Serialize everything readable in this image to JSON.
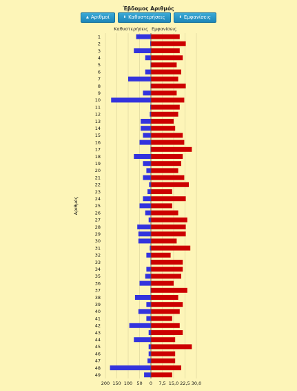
{
  "header": {
    "title": "Έβδομος Αριθμός",
    "buttons": [
      {
        "label": "Αριθμοί",
        "icon": "triangle-up-icon"
      },
      {
        "label": "Καθυστερήσεις",
        "icon": "sort-icon"
      },
      {
        "label": "Εμφανίσεις",
        "icon": "sort-icon"
      }
    ]
  },
  "colors": {
    "background": "#fdf5b8",
    "delays_bar": "#3333dd",
    "appearances_bar": "#cc0000",
    "button": "#2a98c8"
  },
  "chart_data": {
    "type": "bar",
    "orientation": "horizontal",
    "ylabel": "Αριθμός",
    "categories": [
      "1",
      "2",
      "3",
      "4",
      "5",
      "6",
      "7",
      "8",
      "9",
      "10",
      "11",
      "12",
      "13",
      "14",
      "15",
      "16",
      "17",
      "18",
      "19",
      "20",
      "21",
      "22",
      "23",
      "24",
      "25",
      "26",
      "27",
      "28",
      "29",
      "30",
      "31",
      "32",
      "33",
      "34",
      "35",
      "36",
      "37",
      "38",
      "39",
      "40",
      "41",
      "42",
      "43",
      "44",
      "45",
      "46",
      "47",
      "48",
      "49"
    ],
    "series": [
      {
        "name": "Καθυστερήσεις",
        "xlim": [
          0,
          200
        ],
        "ticks": [
          "200",
          "150",
          "100",
          "50",
          "0"
        ],
        "values": [
          65,
          3,
          75,
          25,
          2,
          25,
          100,
          2,
          35,
          175,
          3,
          5,
          45,
          45,
          35,
          50,
          2,
          75,
          35,
          20,
          35,
          8,
          15,
          35,
          50,
          25,
          10,
          60,
          55,
          55,
          5,
          20,
          2,
          20,
          25,
          50,
          2,
          70,
          20,
          55,
          20,
          95,
          10,
          75,
          10,
          10,
          15,
          180,
          30
        ]
      },
      {
        "name": "Εμφανίσεις",
        "xlim": [
          0,
          30
        ],
        "ticks": [
          "0",
          "7,5",
          "15,0",
          "22,5",
          "30,0"
        ],
        "values": [
          19,
          23,
          19,
          21,
          17,
          20,
          18,
          23,
          17,
          22,
          19,
          18,
          15,
          16,
          21,
          22,
          27,
          21,
          20,
          18,
          22,
          25,
          14,
          23,
          14,
          18,
          24,
          23,
          23,
          17,
          26,
          13,
          21,
          21,
          20,
          15,
          24,
          18,
          21,
          19,
          14,
          19,
          21,
          16,
          27,
          16,
          16,
          20,
          14
        ]
      }
    ]
  }
}
